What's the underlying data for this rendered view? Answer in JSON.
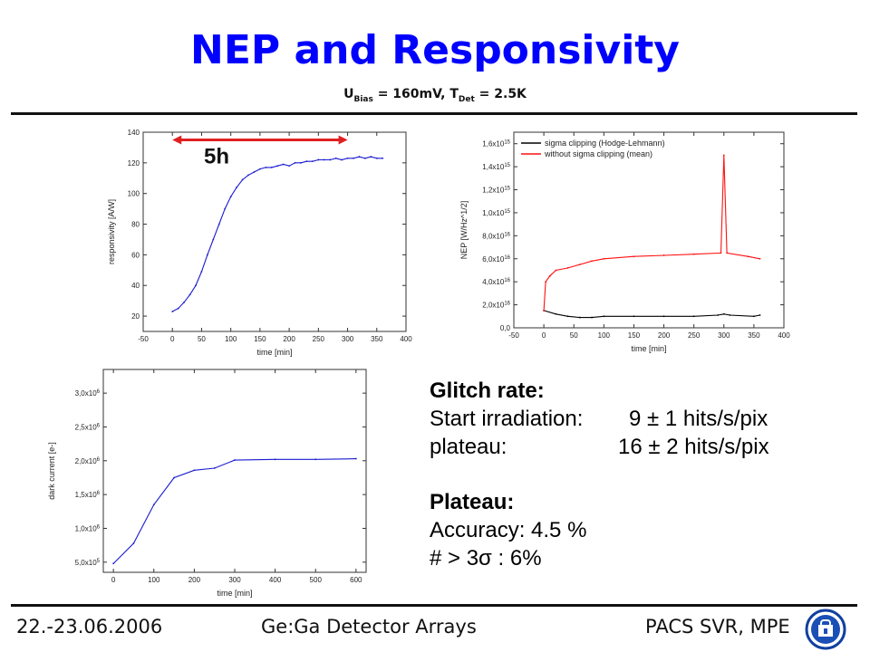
{
  "slide": {
    "title": "NEP and Responsivity",
    "subtitle": {
      "u": "U",
      "u_sub": "Bias",
      "u_val": " = 160mV, T",
      "t_sub": "Det",
      "t_val": " = 2.5K"
    }
  },
  "footer": {
    "date": "22.-23.06.2006",
    "center": "Ge:Ga Detector Arrays",
    "right": "PACS SVR, MPE"
  },
  "glitch_box": {
    "heading": "Glitch rate:",
    "row1_label": "Start irradiation:",
    "row1_value": "9 ± 1 hits/s/pix",
    "row2_label": "plateau:",
    "row2_value": "16 ± 2 hits/s/pix",
    "plateau_heading": "Plateau:",
    "accuracy": "Accuracy: 4.5 %",
    "sigma": "# > 3σ  : 6%"
  },
  "colors": {
    "title": "#0000ff",
    "line_blue": "#1a1ad0",
    "line_red": "#ff1010",
    "line_black": "#000000",
    "arrow": "#e02020"
  },
  "chart_data": [
    {
      "type": "line",
      "xlabel": "time [min]",
      "ylabel": "responsivity [A/W]",
      "xlim": [
        -50,
        400
      ],
      "ylim": [
        10,
        140
      ],
      "xticks": [
        "-50",
        "0",
        "50",
        "100",
        "150",
        "200",
        "250",
        "300",
        "350",
        "400"
      ],
      "yticks": [
        "20",
        "40",
        "60",
        "80",
        "100",
        "120",
        "140"
      ],
      "annotation": {
        "text": "5h",
        "x_from": 0,
        "x_to": 300,
        "y": 135
      },
      "series": [
        {
          "x": [
            0,
            10,
            20,
            30,
            40,
            50,
            60,
            70,
            80,
            90,
            100,
            110,
            120,
            130,
            140,
            150,
            160,
            170,
            180,
            190,
            200,
            210,
            220,
            230,
            240,
            250,
            260,
            270,
            280,
            290,
            300,
            310,
            320,
            330,
            340,
            350,
            360
          ],
          "y": [
            23,
            25,
            29,
            34,
            40,
            49,
            60,
            70,
            80,
            90,
            98,
            104,
            109,
            112,
            114,
            116,
            117,
            117,
            118,
            119,
            118,
            120,
            120,
            121,
            121,
            122,
            122,
            122,
            123,
            122,
            123,
            123,
            124,
            123,
            124,
            123,
            123
          ]
        }
      ]
    },
    {
      "type": "line",
      "xlabel": "time [min]",
      "ylabel": "NEP [W/Hz^1/2]",
      "xlim": [
        -50,
        400
      ],
      "ylim": [
        0,
        1.7
      ],
      "xticks": [
        "-50",
        "0",
        "50",
        "100",
        "150",
        "200",
        "250",
        "300",
        "350",
        "400"
      ],
      "yticks": [
        "0,0",
        "2,0x10-16",
        "4,0x10-16",
        "6,0x10-16",
        "8,0x10-16",
        "1,0x10-15",
        "1,2x10-15",
        "1,4x10-15",
        "1,6x10-15"
      ],
      "legend_position": "top-left",
      "series": [
        {
          "name": "sigma clipping (Hodge-Lehmann)",
          "color": "#000000",
          "x": [
            0,
            20,
            40,
            60,
            80,
            100,
            150,
            200,
            250,
            290,
            300,
            310,
            350,
            360
          ],
          "y": [
            0.15,
            0.12,
            0.1,
            0.09,
            0.09,
            0.1,
            0.1,
            0.1,
            0.1,
            0.11,
            0.12,
            0.11,
            0.1,
            0.11
          ]
        },
        {
          "name": "without sigma clipping (mean)",
          "color": "#ff1010",
          "x": [
            0,
            3,
            10,
            20,
            40,
            60,
            80,
            100,
            150,
            200,
            250,
            295,
            300,
            305,
            340,
            360
          ],
          "y": [
            0.15,
            0.4,
            0.45,
            0.5,
            0.52,
            0.55,
            0.58,
            0.6,
            0.62,
            0.63,
            0.64,
            0.65,
            1.5,
            0.65,
            0.62,
            0.6
          ]
        }
      ]
    },
    {
      "type": "line",
      "xlabel": "time [min]",
      "ylabel": "dark current [e-]",
      "xlim": [
        -25,
        625
      ],
      "ylim": [
        0.35,
        3.35
      ],
      "xticks": [
        "0",
        "100",
        "200",
        "300",
        "400",
        "500",
        "600"
      ],
      "yticks": [
        "5,0x10^5",
        "1,0x10^6",
        "1,5x10^6",
        "2,0x10^6",
        "2,5x10^6",
        "3,0x10^6"
      ],
      "series": [
        {
          "x": [
            0,
            50,
            100,
            150,
            200,
            250,
            300,
            400,
            500,
            600
          ],
          "y": [
            0.48,
            0.78,
            1.35,
            1.75,
            1.86,
            1.89,
            2.01,
            2.02,
            2.02,
            2.03
          ]
        }
      ]
    }
  ]
}
